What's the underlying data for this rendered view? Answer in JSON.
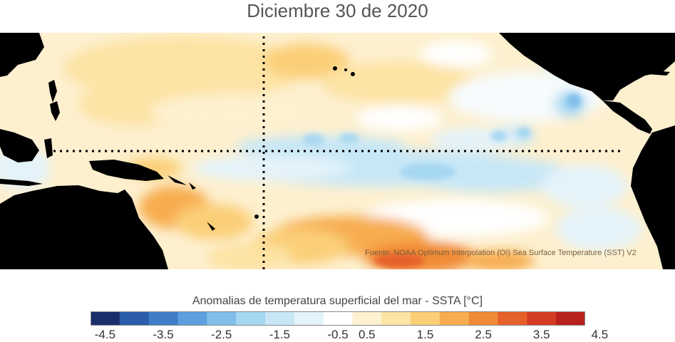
{
  "title": "Diciembre 30 de 2020",
  "source_note": "Fuente: NOAA Optimum Interpolation (OI) Sea Surface Temperature (SST) V2",
  "colorbar": {
    "title": "Anomalias de temperatura superficial del mar - SSTA  [°C]",
    "tick_labels": [
      "-4.5",
      "-3.5",
      "-2.5",
      "-1.5",
      "-0.5",
      "0.5",
      "1.5",
      "2.5",
      "3.5",
      "4.5"
    ],
    "colors": [
      "#1c2d6b",
      "#2a5caa",
      "#3f7cc8",
      "#5b9fde",
      "#80bdea",
      "#a6d7f2",
      "#c8e7f6",
      "#e4f3fa",
      "#ffffff",
      "#fdf1d0",
      "#fde3a4",
      "#fbcf78",
      "#f7ad4f",
      "#f18a35",
      "#e6602a",
      "#d43b23",
      "#b8211c"
    ],
    "range": [
      -4.5,
      4.5
    ]
  },
  "map": {
    "land_color": "#000000",
    "equator_line": "dotted",
    "meridian_line": "dotted"
  }
}
